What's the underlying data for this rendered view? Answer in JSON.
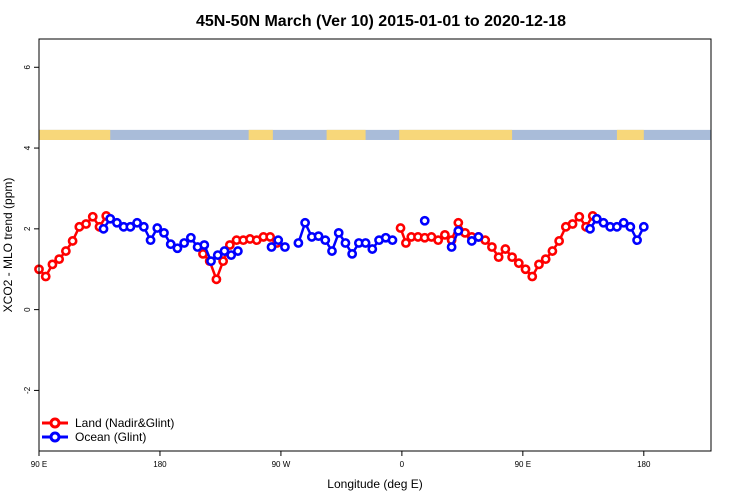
{
  "chart_data": {
    "type": "line",
    "title": "45N-50N March (Ver 10)   2015-01-01 to 2020-12-18",
    "xlabel": "Longitude (deg E)",
    "ylabel": "XCO2 - MLO trend (ppm)",
    "xlim": [
      90,
      590
    ],
    "ylim": [
      -3.5,
      6.7
    ],
    "x_ticks": [
      {
        "value": 90,
        "label": "90 E"
      },
      {
        "value": 180,
        "label": "180"
      },
      {
        "value": 270,
        "label": "90 W"
      },
      {
        "value": 360,
        "label": "0"
      },
      {
        "value": 450,
        "label": "90 E"
      },
      {
        "value": 540,
        "label": "180"
      }
    ],
    "y_ticks": [
      {
        "value": -2,
        "label": "-2"
      },
      {
        "value": 0,
        "label": "0"
      },
      {
        "value": 2,
        "label": "2"
      },
      {
        "value": 4,
        "label": "4"
      },
      {
        "value": 6,
        "label": "6"
      }
    ],
    "land_ocean_strip": {
      "ocean_color": "#a9bcd9",
      "land_color": "#f7d77a",
      "land_ranges": [
        [
          90,
          143
        ],
        [
          246,
          264
        ],
        [
          304,
          333
        ],
        [
          358,
          442
        ],
        [
          520,
          540
        ]
      ],
      "y_range": [
        4.2,
        4.45
      ]
    },
    "legend": {
      "position": "bottom-left",
      "entries": [
        {
          "label": "Land (Nadir&Glint)",
          "color": "#ff0000"
        },
        {
          "label": "Ocean (Glint)",
          "color": "#0000ff"
        }
      ]
    },
    "series": [
      {
        "name": "Land (Nadir&Glint)",
        "color": "#ff0000",
        "points": [
          [
            90,
            1.0
          ],
          [
            95,
            0.82
          ],
          [
            100,
            1.12
          ],
          [
            105,
            1.25
          ],
          [
            110,
            1.45
          ],
          [
            115,
            1.7
          ],
          [
            120,
            2.05
          ],
          [
            125,
            2.12
          ],
          [
            130,
            2.3
          ],
          [
            135,
            2.05
          ],
          [
            140,
            2.32
          ],
          [
            null,
            null
          ],
          [
            212,
            1.38
          ],
          [
            217,
            1.2
          ],
          [
            222,
            0.75
          ],
          [
            227,
            1.2
          ],
          [
            232,
            1.6
          ],
          [
            237,
            1.72
          ],
          [
            242,
            1.72
          ],
          [
            247,
            1.75
          ],
          [
            252,
            1.72
          ],
          [
            257,
            1.8
          ],
          [
            262,
            1.8
          ],
          [
            267,
            1.65
          ],
          [
            null,
            null
          ],
          [
            359,
            2.02
          ],
          [
            363,
            1.65
          ],
          [
            367,
            1.8
          ],
          [
            372,
            1.8
          ],
          [
            377,
            1.78
          ],
          [
            382,
            1.8
          ],
          [
            387,
            1.72
          ],
          [
            392,
            1.85
          ],
          [
            397,
            1.72
          ],
          [
            402,
            2.15
          ],
          [
            407,
            1.9
          ],
          [
            412,
            1.8
          ],
          [
            417,
            1.8
          ],
          [
            422,
            1.72
          ],
          [
            427,
            1.55
          ],
          [
            432,
            1.3
          ],
          [
            437,
            1.5
          ],
          [
            442,
            1.3
          ],
          [
            447,
            1.15
          ],
          [
            452,
            1.0
          ],
          [
            457,
            0.82
          ],
          [
            462,
            1.12
          ],
          [
            467,
            1.25
          ],
          [
            472,
            1.45
          ],
          [
            477,
            1.7
          ],
          [
            482,
            2.05
          ],
          [
            487,
            2.12
          ],
          [
            492,
            2.3
          ],
          [
            497,
            2.05
          ],
          [
            502,
            2.32
          ]
        ]
      },
      {
        "name": "Ocean (Glint)",
        "color": "#0000ff",
        "points": [
          [
            138,
            2.0
          ],
          [
            143,
            2.25
          ],
          [
            148,
            2.15
          ],
          [
            153,
            2.05
          ],
          [
            158,
            2.05
          ],
          [
            163,
            2.15
          ],
          [
            168,
            2.05
          ],
          [
            173,
            1.72
          ],
          [
            178,
            2.02
          ],
          [
            183,
            1.9
          ],
          [
            188,
            1.62
          ],
          [
            193,
            1.52
          ],
          [
            198,
            1.65
          ],
          [
            203,
            1.78
          ],
          [
            208,
            1.55
          ],
          [
            213,
            1.6
          ],
          [
            218,
            1.2
          ],
          [
            223,
            1.35
          ],
          [
            228,
            1.45
          ],
          [
            233,
            1.35
          ],
          [
            238,
            1.45
          ],
          [
            null,
            null
          ],
          [
            263,
            1.55
          ],
          [
            268,
            1.72
          ],
          [
            273,
            1.55
          ],
          [
            null,
            null
          ],
          [
            283,
            1.65
          ],
          [
            288,
            2.15
          ],
          [
            293,
            1.8
          ],
          [
            298,
            1.82
          ],
          [
            303,
            1.72
          ],
          [
            308,
            1.45
          ],
          [
            313,
            1.9
          ],
          [
            318,
            1.65
          ],
          [
            323,
            1.38
          ],
          [
            328,
            1.65
          ],
          [
            333,
            1.65
          ],
          [
            338,
            1.5
          ],
          [
            343,
            1.72
          ],
          [
            348,
            1.78
          ],
          [
            353,
            1.72
          ],
          [
            null,
            null
          ],
          [
            377,
            2.2
          ],
          [
            null,
            null
          ],
          [
            397,
            1.55
          ],
          [
            402,
            1.95
          ],
          [
            null,
            null
          ],
          [
            412,
            1.7
          ],
          [
            417,
            1.8
          ],
          [
            null,
            null
          ],
          [
            500,
            2.0
          ],
          [
            505,
            2.25
          ],
          [
            510,
            2.15
          ],
          [
            515,
            2.05
          ],
          [
            520,
            2.05
          ],
          [
            525,
            2.15
          ],
          [
            530,
            2.05
          ],
          [
            535,
            1.72
          ],
          [
            540,
            2.05
          ]
        ]
      }
    ]
  }
}
